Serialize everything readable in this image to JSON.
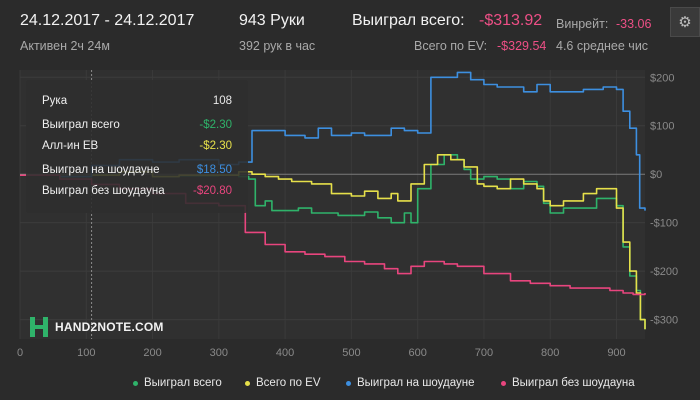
{
  "header": {
    "date_range": "24.12.2017 - 24.12.2017",
    "active": "Активен 2ч 24м",
    "hands": "943 Руки",
    "hands_per_hour": "392 рук в час",
    "won_total_label": "Выиграл всего:",
    "won_total_value": "-$313.92",
    "ev_label": "Всего по EV:",
    "ev_value": "-$329.54",
    "winrate_label": "Винрейт:",
    "winrate_value": "-33.06",
    "avg_label": "4.6 среднее чис"
  },
  "icons": {
    "settings": "gear-icon"
  },
  "tooltip": {
    "rows": [
      {
        "label": "Рука",
        "value": "108",
        "color": "#e8e8e8"
      },
      {
        "label": "Выиграл всего",
        "value": "-$2.30",
        "color": "#2fb36a"
      },
      {
        "label": "Алл-ин ЕВ",
        "value": "-$2.30",
        "color": "#e6e04a"
      },
      {
        "label": "Выиграл на шоудауне",
        "value": "$18.50",
        "color": "#3d8fe0"
      },
      {
        "label": "Выиграл без шоудауна",
        "value": "-$20.80",
        "color": "#e8457e"
      }
    ]
  },
  "logo": {
    "text": "HAND2NOTE.COM"
  },
  "colors": {
    "background": "#2b2b2b",
    "plot_background": "#303030",
    "green": "#2fb36a",
    "yellow": "#e6e04a",
    "blue": "#3d8fe0",
    "pink": "#e8457e",
    "negative": "#ee4f86"
  },
  "chart_data": {
    "type": "line",
    "xlim": [
      0,
      943
    ],
    "ylim": [
      -340,
      215
    ],
    "x_ticks": [
      0,
      100,
      200,
      300,
      400,
      500,
      600,
      700,
      800,
      900
    ],
    "y_ticks": [
      200,
      100,
      0,
      -100,
      -200,
      -300
    ],
    "y_tick_labels": [
      "$200",
      "$100",
      "$0",
      "-$100",
      "-$200",
      "-$300"
    ],
    "grid": true,
    "legend_position": "bottom",
    "series": [
      {
        "name": "Выиграл всего",
        "color": "#2fb36a",
        "points": [
          [
            0,
            -2
          ],
          [
            20,
            -2
          ],
          [
            60,
            -5
          ],
          [
            108,
            -2
          ],
          [
            150,
            5
          ],
          [
            200,
            -5
          ],
          [
            240,
            -3
          ],
          [
            300,
            -2
          ],
          [
            330,
            -5
          ],
          [
            345,
            -10
          ],
          [
            355,
            -65
          ],
          [
            370,
            -55
          ],
          [
            380,
            -75
          ],
          [
            400,
            -75
          ],
          [
            420,
            -70
          ],
          [
            440,
            -80
          ],
          [
            480,
            -85
          ],
          [
            520,
            -78
          ],
          [
            540,
            -90
          ],
          [
            560,
            -100
          ],
          [
            580,
            -80
          ],
          [
            590,
            -100
          ],
          [
            600,
            -30
          ],
          [
            620,
            20
          ],
          [
            640,
            40
          ],
          [
            660,
            30
          ],
          [
            670,
            10
          ],
          [
            680,
            -10
          ],
          [
            700,
            -5
          ],
          [
            720,
            -10
          ],
          [
            740,
            -30
          ],
          [
            760,
            -15
          ],
          [
            780,
            -25
          ],
          [
            790,
            -60
          ],
          [
            800,
            -80
          ],
          [
            820,
            -70
          ],
          [
            850,
            -70
          ],
          [
            870,
            -50
          ],
          [
            880,
            -50
          ],
          [
            900,
            -65
          ],
          [
            910,
            -150
          ],
          [
            920,
            -210
          ],
          [
            930,
            -240
          ],
          [
            936,
            -300
          ],
          [
            943,
            -320
          ]
        ]
      },
      {
        "name": "Всего по EV",
        "color": "#e6e04a",
        "points": [
          [
            0,
            -2
          ],
          [
            20,
            -2
          ],
          [
            60,
            -5
          ],
          [
            108,
            -2
          ],
          [
            150,
            5
          ],
          [
            200,
            -5
          ],
          [
            240,
            -2
          ],
          [
            300,
            -2
          ],
          [
            330,
            5
          ],
          [
            350,
            0
          ],
          [
            370,
            -5
          ],
          [
            390,
            -10
          ],
          [
            410,
            -15
          ],
          [
            440,
            -20
          ],
          [
            470,
            -40
          ],
          [
            500,
            -45
          ],
          [
            520,
            -35
          ],
          [
            540,
            -50
          ],
          [
            560,
            -40
          ],
          [
            570,
            -55
          ],
          [
            590,
            -20
          ],
          [
            610,
            20
          ],
          [
            630,
            40
          ],
          [
            650,
            30
          ],
          [
            670,
            15
          ],
          [
            690,
            -20
          ],
          [
            700,
            -25
          ],
          [
            720,
            -30
          ],
          [
            740,
            -10
          ],
          [
            760,
            -20
          ],
          [
            780,
            -30
          ],
          [
            790,
            -55
          ],
          [
            800,
            -65
          ],
          [
            820,
            -55
          ],
          [
            850,
            -40
          ],
          [
            870,
            -30
          ],
          [
            880,
            -30
          ],
          [
            900,
            -70
          ],
          [
            910,
            -140
          ],
          [
            920,
            -200
          ],
          [
            930,
            -245
          ],
          [
            936,
            -300
          ],
          [
            943,
            -320
          ]
        ]
      },
      {
        "name": "Выиграл на шоудауне",
        "color": "#3d8fe0",
        "points": [
          [
            0,
            -2
          ],
          [
            20,
            -2
          ],
          [
            60,
            -5
          ],
          [
            108,
            18
          ],
          [
            150,
            30
          ],
          [
            200,
            25
          ],
          [
            240,
            30
          ],
          [
            300,
            20
          ],
          [
            330,
            25
          ],
          [
            350,
            90
          ],
          [
            400,
            80
          ],
          [
            430,
            75
          ],
          [
            450,
            95
          ],
          [
            470,
            80
          ],
          [
            500,
            85
          ],
          [
            520,
            80
          ],
          [
            560,
            95
          ],
          [
            580,
            90
          ],
          [
            600,
            85
          ],
          [
            620,
            200
          ],
          [
            640,
            200
          ],
          [
            660,
            210
          ],
          [
            680,
            195
          ],
          [
            700,
            185
          ],
          [
            720,
            180
          ],
          [
            760,
            170
          ],
          [
            780,
            185
          ],
          [
            800,
            170
          ],
          [
            820,
            170
          ],
          [
            850,
            175
          ],
          [
            880,
            180
          ],
          [
            900,
            175
          ],
          [
            910,
            130
          ],
          [
            920,
            95
          ],
          [
            930,
            40
          ],
          [
            935,
            -70
          ],
          [
            943,
            -75
          ]
        ]
      },
      {
        "name": "Выиграл без шоудауна",
        "color": "#e8457e",
        "points": [
          [
            0,
            -2
          ],
          [
            20,
            -2
          ],
          [
            60,
            -10
          ],
          [
            108,
            -21
          ],
          [
            150,
            -30
          ],
          [
            200,
            -40
          ],
          [
            250,
            -60
          ],
          [
            300,
            -65
          ],
          [
            340,
            -120
          ],
          [
            370,
            -145
          ],
          [
            400,
            -160
          ],
          [
            430,
            -165
          ],
          [
            460,
            -170
          ],
          [
            490,
            -180
          ],
          [
            520,
            -185
          ],
          [
            550,
            -195
          ],
          [
            570,
            -205
          ],
          [
            590,
            -190
          ],
          [
            610,
            -180
          ],
          [
            640,
            -185
          ],
          [
            660,
            -190
          ],
          [
            700,
            -205
          ],
          [
            740,
            -220
          ],
          [
            770,
            -225
          ],
          [
            800,
            -230
          ],
          [
            830,
            -235
          ],
          [
            860,
            -235
          ],
          [
            890,
            -240
          ],
          [
            910,
            -245
          ],
          [
            925,
            -248
          ],
          [
            943,
            -245
          ]
        ]
      }
    ]
  }
}
